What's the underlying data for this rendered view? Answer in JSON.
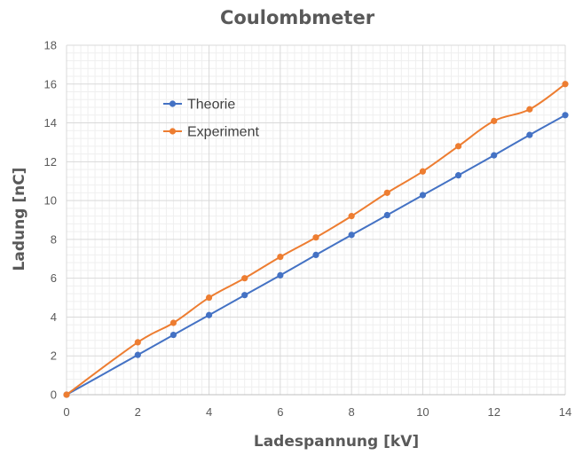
{
  "chart_data": {
    "type": "line",
    "title": "Coulombmeter",
    "xlabel": "Ladespannung [kV]",
    "ylabel": "Ladung [nC]",
    "xlim": [
      0,
      14
    ],
    "ylim": [
      0,
      18
    ],
    "x_ticks": [
      "0",
      "2",
      "4",
      "6",
      "8",
      "10",
      "12",
      "14"
    ],
    "y_ticks": [
      "0",
      "2",
      "4",
      "6",
      "8",
      "10",
      "12",
      "14",
      "16",
      "18"
    ],
    "grid": true,
    "legend_position": "upper-left inside",
    "series": [
      {
        "name": "Theorie",
        "color": "#4472C4",
        "x": [
          0,
          2,
          3,
          4,
          5,
          6,
          7,
          8,
          9,
          10,
          11,
          12,
          13,
          14
        ],
        "y": [
          0,
          2.05,
          3.08,
          4.1,
          5.13,
          6.15,
          7.2,
          8.23,
          9.25,
          10.28,
          11.3,
          12.33,
          13.38,
          14.4
        ]
      },
      {
        "name": "Experiment",
        "color": "#ED7D31",
        "x": [
          0,
          2,
          3,
          4,
          5,
          6,
          7,
          8,
          9,
          10,
          11,
          12,
          13,
          14
        ],
        "y": [
          0,
          2.7,
          3.7,
          5.0,
          6.0,
          7.1,
          8.1,
          9.2,
          10.4,
          11.5,
          12.8,
          14.1,
          14.7,
          16.0
        ]
      }
    ]
  }
}
